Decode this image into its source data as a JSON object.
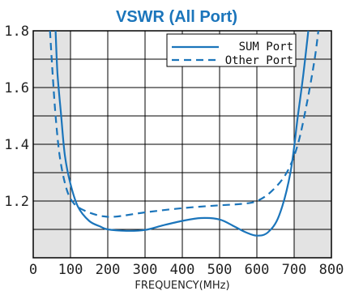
{
  "colors": {
    "line": "#1b75bb",
    "shade": "#e3e3e3",
    "grid": "#000000",
    "title": "#1b75bb"
  },
  "chart_data": {
    "type": "line",
    "title": "VSWR (All Port)",
    "xlabel": "FREQUENCY(MHz)",
    "ylabel": "",
    "xlim": [
      0,
      800
    ],
    "ylim": [
      1.0,
      1.8
    ],
    "grid": true,
    "legend_position": "top-right",
    "x_ticks": [
      "0",
      "100",
      "200",
      "300",
      "400",
      "500",
      "600",
      "700",
      "800"
    ],
    "y_ticks": [
      "1.8",
      "1.6",
      "1.4",
      "1.2"
    ],
    "y_tick_values": [
      1.8,
      1.6,
      1.4,
      1.2
    ],
    "shaded_regions": [
      [
        0,
        100
      ],
      [
        700,
        800
      ]
    ],
    "series": [
      {
        "name": "SUM Port",
        "style": "solid",
        "points": [
          [
            60,
            1.8
          ],
          [
            65,
            1.65
          ],
          [
            75,
            1.5
          ],
          [
            85,
            1.36
          ],
          [
            100,
            1.26
          ],
          [
            120,
            1.18
          ],
          [
            150,
            1.13
          ],
          [
            180,
            1.11
          ],
          [
            200,
            1.1
          ],
          [
            250,
            1.095
          ],
          [
            300,
            1.098
          ],
          [
            350,
            1.115
          ],
          [
            400,
            1.13
          ],
          [
            450,
            1.14
          ],
          [
            500,
            1.135
          ],
          [
            540,
            1.11
          ],
          [
            570,
            1.09
          ],
          [
            600,
            1.078
          ],
          [
            630,
            1.09
          ],
          [
            660,
            1.15
          ],
          [
            690,
            1.3
          ],
          [
            710,
            1.5
          ],
          [
            725,
            1.65
          ],
          [
            738,
            1.8
          ]
        ]
      },
      {
        "name": "Other Port",
        "style": "dashed",
        "points": [
          [
            45,
            1.8
          ],
          [
            52,
            1.65
          ],
          [
            60,
            1.5
          ],
          [
            72,
            1.35
          ],
          [
            90,
            1.24
          ],
          [
            110,
            1.19
          ],
          [
            140,
            1.165
          ],
          [
            180,
            1.148
          ],
          [
            220,
            1.145
          ],
          [
            300,
            1.16
          ],
          [
            400,
            1.175
          ],
          [
            500,
            1.185
          ],
          [
            560,
            1.19
          ],
          [
            600,
            1.2
          ],
          [
            640,
            1.235
          ],
          [
            680,
            1.3
          ],
          [
            710,
            1.4
          ],
          [
            735,
            1.55
          ],
          [
            755,
            1.7
          ],
          [
            765,
            1.8
          ]
        ]
      }
    ]
  }
}
